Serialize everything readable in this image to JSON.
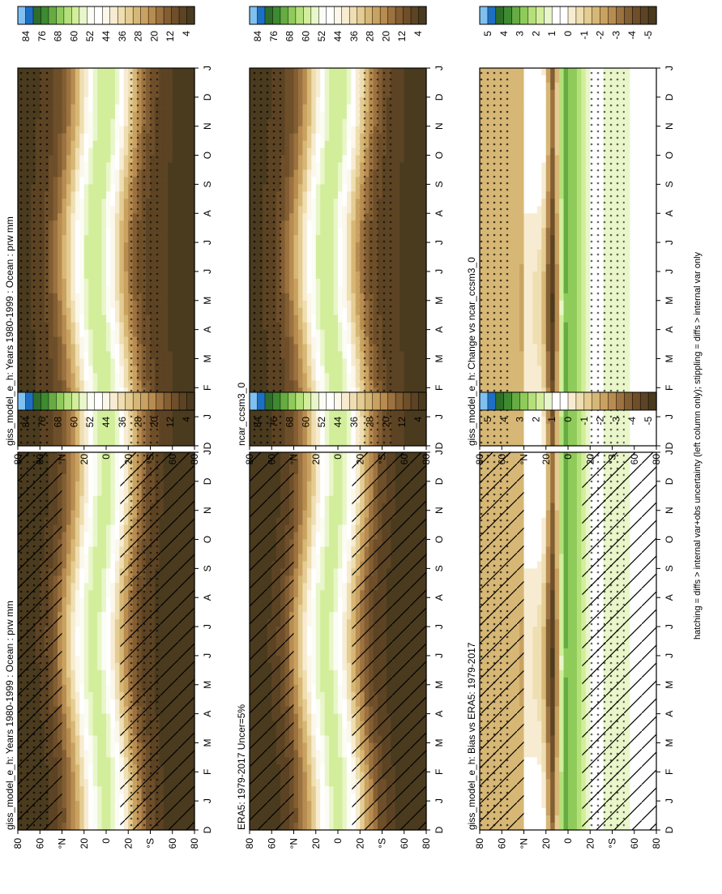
{
  "footnote": "hatching = diffs > internal var+obs uncertainty (left column only); stippling = diffs > internal var only",
  "month_labels": [
    "D",
    "J",
    "F",
    "M",
    "A",
    "M",
    "J",
    "J",
    "A",
    "S",
    "O",
    "N",
    "D",
    "J"
  ],
  "lat_labels": [
    "80",
    "60",
    "°N",
    "20",
    "0",
    "20",
    "°S",
    "60",
    "80"
  ],
  "colorbars": {
    "absolute": {
      "labels": [
        "84",
        "76",
        "68",
        "60",
        "52",
        "44",
        "36",
        "28",
        "20",
        "12",
        "4"
      ],
      "colors": [
        "#4a3b1f",
        "#5c4323",
        "#6e4f2a",
        "#835e32",
        "#9c7240",
        "#b88c50",
        "#c9a261",
        "#d7b775",
        "#e4cc92",
        "#efdeb1",
        "#f7ecd1",
        "#fbf7ea",
        "#ffffff",
        "#fbfdf4",
        "#e9f6c9",
        "#d2ee9b",
        "#b4e07a",
        "#8fcb5a",
        "#65ac43",
        "#3e8a31",
        "#2e6e2a",
        "#1e6fc3",
        "#7fc0f0"
      ]
    },
    "difference": {
      "labels": [
        "5",
        "4",
        "3",
        "2",
        "1",
        "0",
        "-1",
        "-2",
        "-3",
        "-4",
        "-5"
      ],
      "colors": [
        "#4a3b1f",
        "#5c4323",
        "#6e4f2a",
        "#835e32",
        "#9c7240",
        "#b88c50",
        "#c9a261",
        "#d7b775",
        "#e4cc92",
        "#efdeb1",
        "#f7ecd1",
        "#ffffff",
        "#ffffff",
        "#e9f6c9",
        "#d2ee9b",
        "#b4e07a",
        "#8fcb5a",
        "#65ac43",
        "#3e8a31",
        "#2e6e2a",
        "#1e6fc3",
        "#7fc0f0"
      ]
    }
  },
  "panels": [
    {
      "id": "p1",
      "title": "giss_model_e_h: Years 1980-1999 : Ocean : prw mm",
      "kind": "absolute",
      "hatch": true,
      "stipple": true
    },
    {
      "id": "p2",
      "title": "giss_model_e_h: Years 1980-1999 : Ocean : prw mm",
      "kind": "absolute",
      "hatch": false,
      "stipple": true
    },
    {
      "id": "p3",
      "title": "ERA5: 1979-2017 Uncer=5%",
      "kind": "absolute",
      "hatch": true,
      "stipple": false
    },
    {
      "id": "p4",
      "title": "ncar_ccsm3_0",
      "kind": "absolute",
      "hatch": false,
      "stipple": true
    },
    {
      "id": "p5",
      "title": "giss_model_e_h: Bias vs ERA5: 1979-2017",
      "kind": "difference",
      "hatch": true,
      "stipple": true
    },
    {
      "id": "p6",
      "title": "giss_model_e_h: Change vs ncar_ccsm3_0",
      "kind": "difference",
      "hatch": false,
      "stipple": true
    }
  ],
  "chart_data": {
    "type": "heatmap",
    "x_axis": {
      "label": "",
      "ticks": [
        "D",
        "J",
        "F",
        "M",
        "A",
        "M",
        "J",
        "J",
        "A",
        "S",
        "O",
        "N",
        "D",
        "J"
      ]
    },
    "y_axis": {
      "label": "",
      "ticks": [
        "80",
        "60",
        "°N",
        "20",
        "0",
        "20",
        "°S",
        "60",
        "80"
      ],
      "range": [
        -90,
        90
      ]
    },
    "absolute_scale": {
      "levels": [
        84,
        76,
        68,
        60,
        52,
        44,
        36,
        28,
        20,
        12,
        4
      ]
    },
    "difference_scale": {
      "levels": [
        5,
        4,
        3,
        2,
        1,
        0,
        -1,
        -2,
        -3,
        -4,
        -5
      ]
    },
    "panels": [
      {
        "title": "giss_model_e_h: Years 1980-1999 : Ocean : prw mm",
        "scale": "absolute"
      },
      {
        "title": "giss_model_e_h: Years 1980-1999 : Ocean : prw mm",
        "scale": "absolute"
      },
      {
        "title": "ERA5: 1979-2017 Uncer=5%",
        "scale": "absolute"
      },
      {
        "title": "ncar_ccsm3_0",
        "scale": "absolute"
      },
      {
        "title": "giss_model_e_h: Bias vs ERA5: 1979-2017",
        "scale": "difference"
      },
      {
        "title": "giss_model_e_h: Change vs ncar_ccsm3_0",
        "scale": "difference"
      }
    ]
  }
}
